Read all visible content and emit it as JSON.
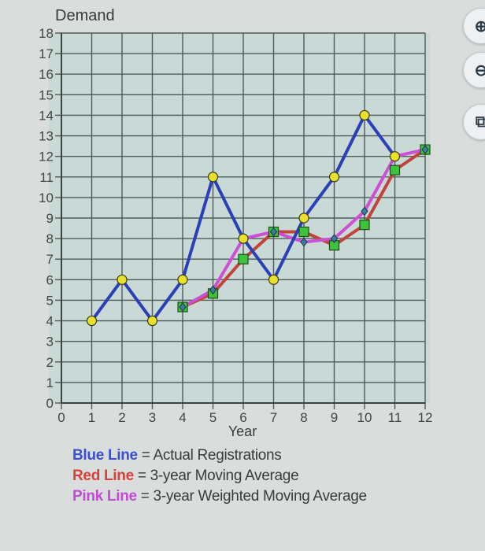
{
  "chart_data": {
    "type": "line",
    "title": "",
    "ylabel": "Demand",
    "xlabel": "Year",
    "xlim": [
      0,
      12
    ],
    "ylim": [
      0,
      18
    ],
    "x_ticks": [
      0,
      1,
      2,
      3,
      4,
      5,
      6,
      7,
      8,
      9,
      10,
      11,
      12
    ],
    "y_ticks": [
      0,
      1,
      2,
      3,
      4,
      5,
      6,
      7,
      8,
      9,
      10,
      11,
      12,
      13,
      14,
      15,
      16,
      17,
      18
    ],
    "grid": true,
    "series": [
      {
        "name": "Actual Registrations",
        "color": "#2b3fb8",
        "marker": "circle",
        "marker_color": "#e8e02a",
        "x": [
          1,
          2,
          3,
          4,
          5,
          6,
          7,
          8,
          9,
          10,
          11
        ],
        "values": [
          4,
          6,
          4,
          6,
          11,
          8,
          6,
          9,
          11,
          14,
          12
        ]
      },
      {
        "name": "3-year Moving Average",
        "color": "#c0443a",
        "marker": "square",
        "marker_color": "#3ec43a",
        "x": [
          4,
          5,
          6,
          7,
          8,
          9,
          10,
          11,
          12
        ],
        "values": [
          4.67,
          5.33,
          7,
          8.33,
          8.33,
          7.67,
          8.67,
          11.33,
          12.33
        ]
      },
      {
        "name": "3-year Weighted Moving Average",
        "color": "#cc4fd6",
        "marker": "diamond",
        "marker_color": "#3a7fa0",
        "x": [
          4,
          5,
          6,
          7,
          8,
          9,
          10,
          11,
          12
        ],
        "values": [
          4.67,
          5.5,
          8,
          8.33,
          7.83,
          8,
          9.33,
          12,
          12.33
        ]
      }
    ],
    "legend_position": "bottom"
  },
  "legend": [
    {
      "key": "Blue Line",
      "color": "#3b4fd0",
      "text": " = Actual Registrations"
    },
    {
      "key": "Red Line",
      "color": "#d9403a",
      "text": " = 3-year Moving Average"
    },
    {
      "key": "Pink Line",
      "color": "#c24ad4",
      "text": " = 3-year Weighted Moving Average"
    }
  ],
  "side_buttons": [
    {
      "name": "zoom-in",
      "glyph": "⊕"
    },
    {
      "name": "zoom-out",
      "glyph": "⊖"
    },
    {
      "name": "open-new-window",
      "glyph": "⧉"
    }
  ]
}
